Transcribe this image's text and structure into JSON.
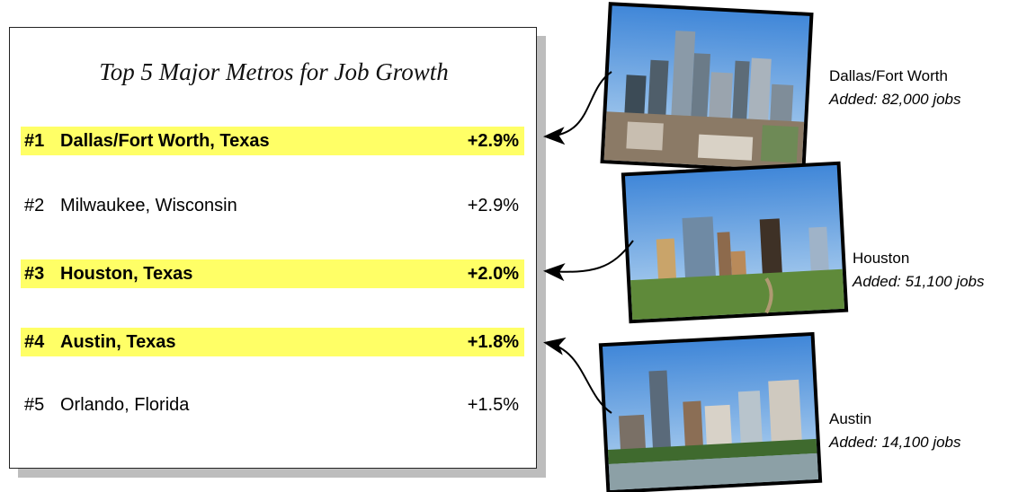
{
  "title": "Top 5 Major Metros for Job Growth",
  "rows": [
    {
      "rank": "#1",
      "metro": "Dallas/Fort Worth, Texas",
      "change": "+2.9%",
      "highlight": true
    },
    {
      "rank": "#2",
      "metro": "Milwaukee, Wisconsin",
      "change": "+2.9%",
      "highlight": false
    },
    {
      "rank": "#3",
      "metro": "Houston, Texas",
      "change": "+2.0%",
      "highlight": true
    },
    {
      "rank": "#4",
      "metro": "Austin, Texas",
      "change": "+1.8%",
      "highlight": true
    },
    {
      "rank": "#5",
      "metro": "Orlando, Florida",
      "change": "+1.5%",
      "highlight": false
    }
  ],
  "highlight_color": "#ffff66",
  "photos": [
    {
      "city": "Dallas/Fort Worth",
      "added": "Added: 82,000 jobs"
    },
    {
      "city": "Houston",
      "added": "Added: 51,100 jobs"
    },
    {
      "city": "Austin",
      "added": "Added: 14,100 jobs"
    }
  ]
}
